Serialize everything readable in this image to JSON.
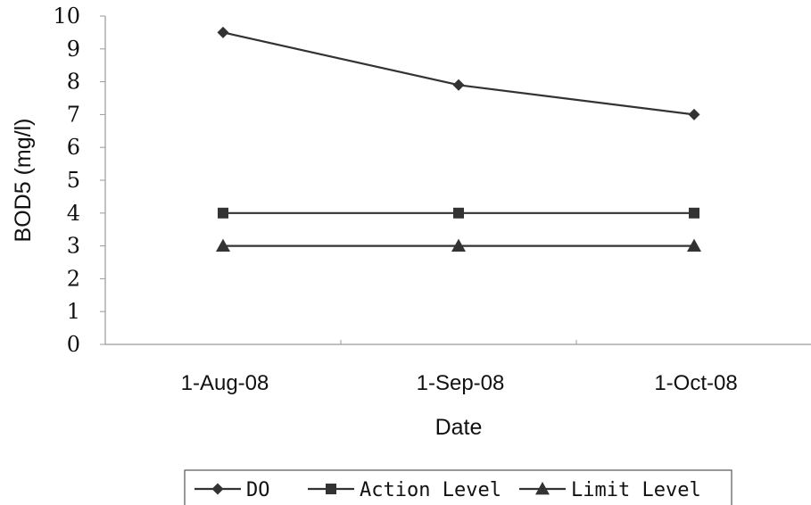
{
  "chart_data": {
    "type": "line",
    "title": "",
    "xlabel": "Date",
    "ylabel": "BOD5 (mg/l)",
    "categories": [
      "1-Aug-08",
      "1-Sep-08",
      "1-Oct-08"
    ],
    "ylim": [
      0,
      10
    ],
    "yticks": [
      "0",
      "1",
      "2",
      "3",
      "4",
      "5",
      "6",
      "7",
      "8",
      "9",
      "10"
    ],
    "grid": false,
    "legend_position": "bottom",
    "series": [
      {
        "name": "DO",
        "values": [
          9.5,
          7.9,
          7.0
        ],
        "marker": "diamond",
        "color": "#333333"
      },
      {
        "name": "Action Level",
        "values": [
          4.0,
          4.0,
          4.0
        ],
        "marker": "square",
        "color": "#333333"
      },
      {
        "name": "Limit Level",
        "values": [
          3.0,
          3.0,
          3.0
        ],
        "marker": "triangle",
        "color": "#333333"
      }
    ]
  }
}
